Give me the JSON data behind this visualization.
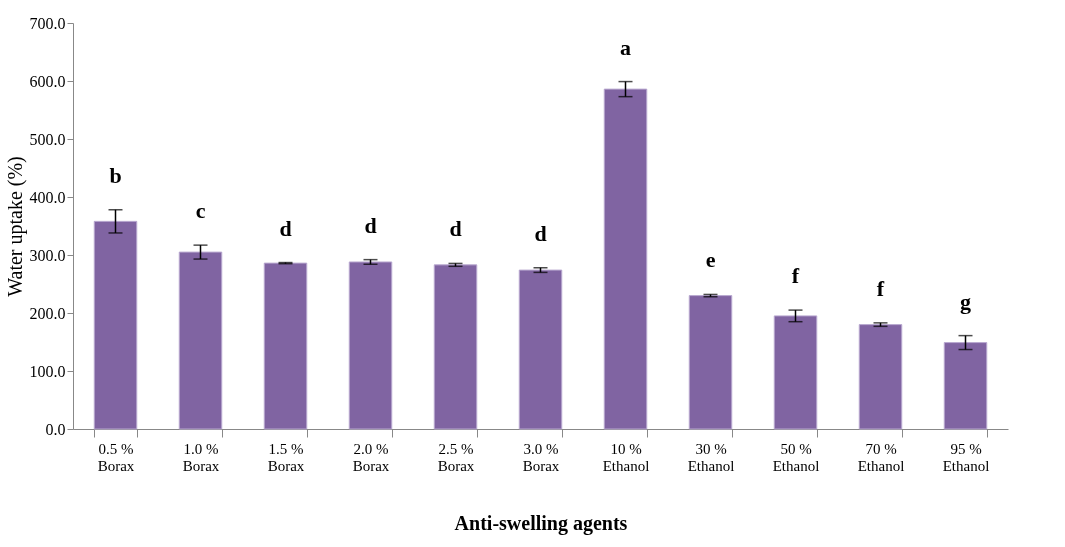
{
  "chart_data": {
    "type": "bar",
    "xlabel": "Anti-swelling agents",
    "ylabel": "Water uptake (%)",
    "categories": [
      "0.5 %\nBorax",
      "1.0 %\nBorax",
      "1.5 %\nBorax",
      "2.0 %\nBorax",
      "2.5 %\nBorax",
      "3.0 %\nBorax",
      "10 %\nEthanol",
      "30 %\nEthanol",
      "50 %\nEthanol",
      "70 %\nEthanol",
      "95 %\nEthanol"
    ],
    "values": [
      358,
      305,
      286,
      288,
      283,
      274,
      586,
      230,
      195,
      180,
      149
    ],
    "errors": [
      20,
      12,
      1,
      4,
      2.5,
      4,
      13,
      2,
      10,
      3,
      12
    ],
    "color": "#8064a2",
    "ylim": [
      0,
      700
    ],
    "yticks": [
      {
        "value": 0,
        "label": "0.0"
      },
      {
        "value": 100,
        "label": "100.0"
      },
      {
        "value": 200,
        "label": "200.0"
      },
      {
        "value": 300,
        "label": "300.0"
      },
      {
        "value": 400,
        "label": "400.0"
      },
      {
        "value": 500,
        "label": "500.0"
      },
      {
        "value": 600,
        "label": "600.0"
      },
      {
        "value": 700,
        "label": "700.0"
      }
    ],
    "grid": false,
    "annotations": [
      "b",
      "c",
      "d",
      "d",
      "d",
      "d",
      "a",
      "e",
      "f",
      "f",
      "g"
    ]
  }
}
